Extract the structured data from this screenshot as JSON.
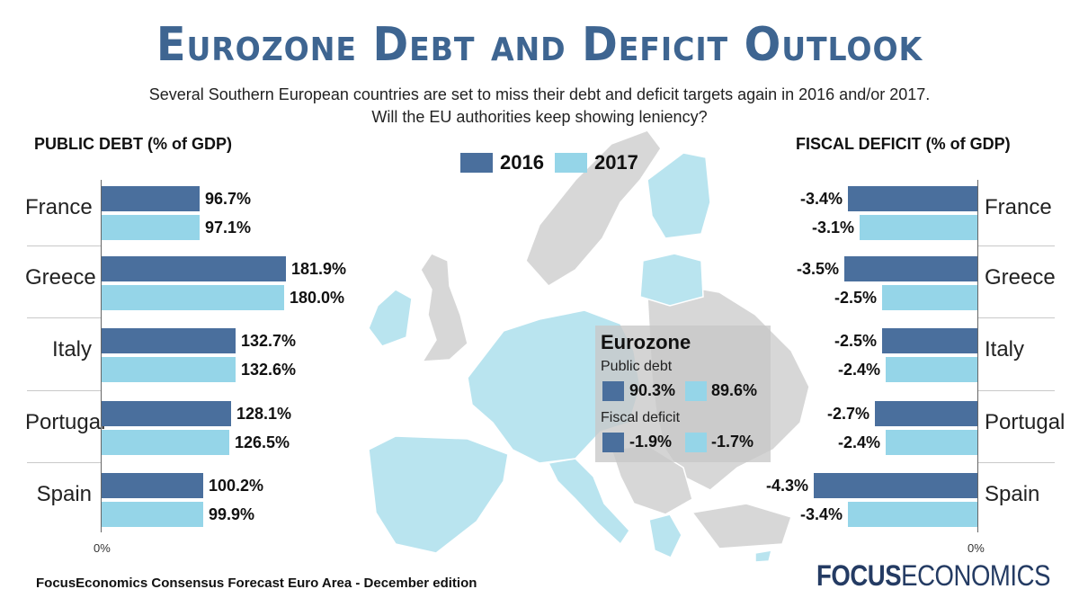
{
  "title": "Eurozone Debt and Deficit Outlook",
  "subtitle_lines": [
    "Several Southern European countries are set to miss their debt and deficit targets again in 2016 and/or 2017.",
    "Will the EU authorities keep showing leniency?"
  ],
  "legend": [
    "2016",
    "2017"
  ],
  "colors": {
    "series_2016": "#4a6f9d",
    "series_2017": "#95d5e8",
    "title": "#3e6591",
    "map_eurozone": "#b9e4ef",
    "map_other": "#d7d7d7"
  },
  "chart_data": [
    {
      "type": "bar",
      "orientation": "horizontal",
      "title": "PUBLIC DEBT (% of GDP)",
      "categories": [
        "France",
        "Greece",
        "Italy",
        "Portugal",
        "Spain"
      ],
      "series": [
        {
          "name": "2016",
          "values": [
            96.7,
            181.9,
            132.7,
            128.1,
            100.2
          ],
          "labels": [
            "96.7%",
            "181.9%",
            "132.7%",
            "128.1%",
            "100.2%"
          ]
        },
        {
          "name": "2017",
          "values": [
            97.1,
            180.0,
            132.6,
            126.5,
            99.9
          ],
          "labels": [
            "97.1%",
            "180.0%",
            "132.6%",
            "126.5%",
            "99.9%"
          ]
        }
      ],
      "axis_origin_label": "0%",
      "xlim": [
        0,
        190
      ]
    },
    {
      "type": "bar",
      "orientation": "horizontal",
      "title": "FISCAL DEFICIT (% of GDP)",
      "categories": [
        "France",
        "Greece",
        "Italy",
        "Portugal",
        "Spain"
      ],
      "series": [
        {
          "name": "2016",
          "values": [
            -3.4,
            -3.5,
            -2.5,
            -2.7,
            -4.3
          ],
          "labels": [
            "-3.4%",
            "-3.5%",
            "-2.5%",
            "-2.7%",
            "-4.3%"
          ]
        },
        {
          "name": "2017",
          "values": [
            -3.1,
            -2.5,
            -2.4,
            -2.4,
            -3.4
          ],
          "labels": [
            "-3.1%",
            "-2.5%",
            "-2.4%",
            "-2.4%",
            "-3.4%"
          ]
        }
      ],
      "axis_origin_label": "0%",
      "xlim": [
        -4.5,
        0
      ]
    }
  ],
  "eurozone": {
    "title": "Eurozone",
    "public_debt_label": "Public debt",
    "public_debt": [
      "90.3%",
      "89.6%"
    ],
    "fiscal_deficit_label": "Fiscal deficit",
    "fiscal_deficit": [
      "-1.9%",
      "-1.7%"
    ]
  },
  "footer": "FocusEconomics Consensus Forecast Euro Area - December edition",
  "logo": {
    "bold": "FOCUS",
    "light": "ECONOMICS"
  }
}
